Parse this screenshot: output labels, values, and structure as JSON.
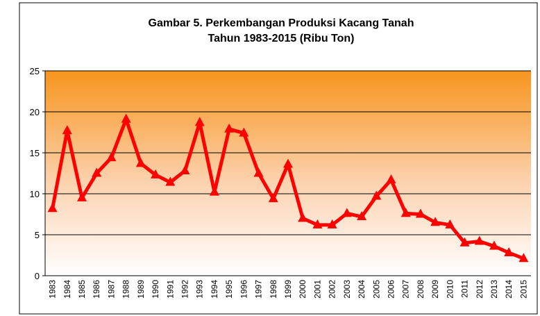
{
  "chart_data": {
    "type": "line",
    "title": "Gambar 5. Perkembangan Produksi Kacang Tanah",
    "subtitle": "Tahun 1983-2015 (Ribu Ton)",
    "categories": [
      "1983",
      "1984",
      "1985",
      "1986",
      "1987",
      "1988",
      "1989",
      "1990",
      "1991",
      "1992",
      "1993",
      "1994",
      "1995",
      "1996",
      "1997",
      "1998",
      "1999",
      "2000",
      "2001",
      "2002",
      "2003",
      "2004",
      "2005",
      "2006",
      "2007",
      "2008",
      "2009",
      "2010",
      "2011",
      "2012",
      "2013",
      "2014",
      "2015"
    ],
    "series": [
      {
        "name": "Produksi",
        "color": "#ff0000",
        "values": [
          8.2,
          17.7,
          9.5,
          12.5,
          14.4,
          19.1,
          13.7,
          12.3,
          11.4,
          12.8,
          18.7,
          10.2,
          17.9,
          17.4,
          12.5,
          9.4,
          13.6,
          7.0,
          6.2,
          6.2,
          7.6,
          7.2,
          9.7,
          11.7,
          7.6,
          7.5,
          6.5,
          6.2,
          4.0,
          4.2,
          3.6,
          2.8,
          2.1
        ]
      }
    ],
    "ylim": [
      0,
      25
    ],
    "yticks": [
      0,
      5,
      10,
      15,
      20,
      25
    ],
    "grid": true
  }
}
